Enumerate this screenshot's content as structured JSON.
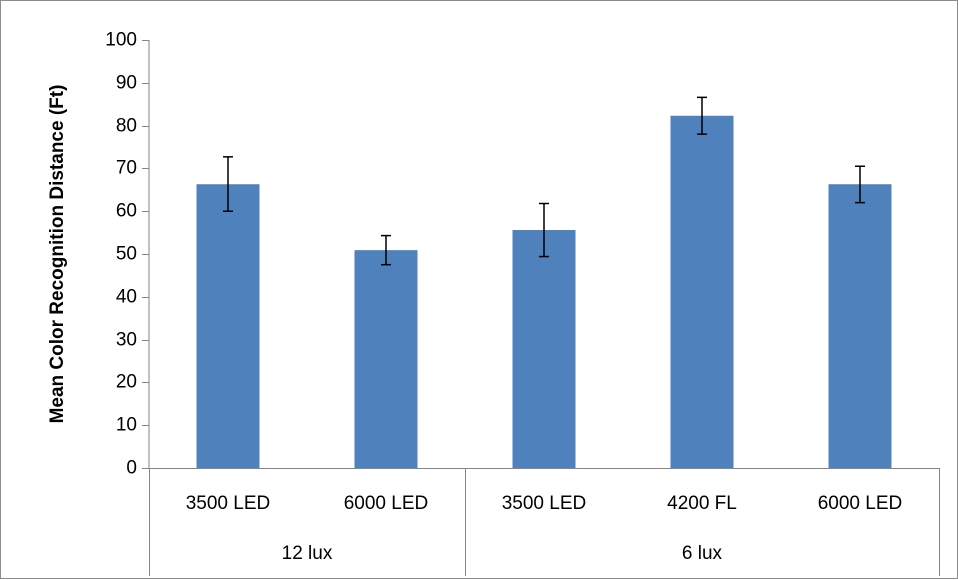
{
  "chart_data": {
    "type": "bar",
    "title": "",
    "xlabel": "",
    "ylabel": "Mean Color Recognition Distance (Ft)",
    "ylim": [
      0,
      100
    ],
    "ytick_step": 10,
    "grid": false,
    "legend": "none",
    "bar_color": "#4f81bd",
    "groups": [
      {
        "label": "12 lux",
        "categories": [
          "3500 LED",
          "6000 LED"
        ]
      },
      {
        "label": "6 lux",
        "categories": [
          "3500 LED",
          "4200 FL",
          "6000 LED"
        ]
      }
    ],
    "categories": [
      "3500 LED",
      "6000 LED",
      "3500 LED",
      "4200 FL",
      "6000 LED"
    ],
    "values": [
      66.3,
      50.9,
      55.6,
      82.3,
      66.3
    ],
    "error_low": [
      60.0,
      47.5,
      49.4,
      78.0,
      62.0
    ],
    "error_high": [
      72.7,
      54.3,
      61.8,
      86.6,
      70.5
    ]
  }
}
